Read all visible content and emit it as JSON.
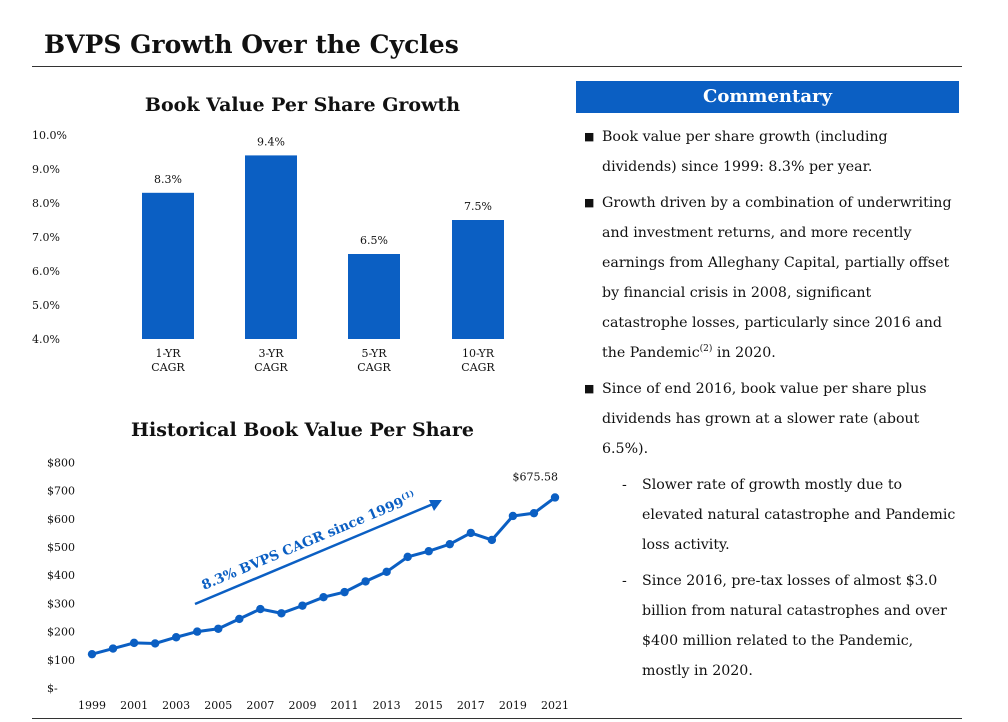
{
  "page": {
    "title": "BVPS Growth Over the Cycles"
  },
  "chart_data": [
    {
      "type": "bar",
      "title": "Book Value Per Share Growth",
      "categories": [
        "1-YR CAGR",
        "3-YR CAGR",
        "5-YR CAGR",
        "10-YR CAGR"
      ],
      "category_lines": [
        [
          "1-YR",
          "CAGR"
        ],
        [
          "3-YR",
          "CAGR"
        ],
        [
          "5-YR",
          "CAGR"
        ],
        [
          "10-YR",
          "CAGR"
        ]
      ],
      "values": [
        8.3,
        9.4,
        6.5,
        7.5
      ],
      "data_labels": [
        "8.3%",
        "9.4%",
        "6.5%",
        "7.5%"
      ],
      "ylim": [
        4.0,
        10.0
      ],
      "yticks": [
        "4.0%",
        "5.0%",
        "6.0%",
        "7.0%",
        "8.0%",
        "9.0%",
        "10.0%"
      ],
      "color": "#0b5fc3",
      "grid": false
    },
    {
      "type": "line",
      "title": "Historical Book Value Per Share",
      "x": [
        1999,
        2000,
        2001,
        2002,
        2003,
        2004,
        2005,
        2006,
        2007,
        2008,
        2009,
        2010,
        2011,
        2012,
        2013,
        2014,
        2015,
        2016,
        2017,
        2018,
        2019,
        2020,
        2021
      ],
      "values": [
        120,
        140,
        160,
        158,
        180,
        200,
        210,
        245,
        280,
        265,
        292,
        322,
        340,
        378,
        412,
        465,
        485,
        510,
        550,
        525,
        610,
        620,
        675.58
      ],
      "xticks": [
        "1999",
        "2001",
        "2003",
        "2005",
        "2007",
        "2009",
        "2011",
        "2013",
        "2015",
        "2017",
        "2019",
        "2021"
      ],
      "yticks": [
        "$-",
        "$100",
        "$200",
        "$300",
        "$400",
        "$500",
        "$600",
        "$700",
        "$800"
      ],
      "ylim": [
        0,
        800
      ],
      "end_label": "$675.58",
      "annotation": {
        "text": "8.3% BVPS CAGR since 1999",
        "sup": "(1)"
      },
      "color": "#0b5fc3",
      "grid": false
    }
  ],
  "commentary": {
    "header": "Commentary",
    "bullet1": "Book value per share growth (including dividends) since 1999: 8.3% per year.",
    "bullet2_text": "Growth driven by a combination of underwriting and investment returns, and more recently earnings from Alleghany Capital, partially offset by financial crisis in 2008, significant catastrophe losses, particularly since 2016 and the Pandemic",
    "bullet2_sup": "(2)",
    "bullet2_tail": " in 2020.",
    "bullet3": "Since of end 2016, book value per share plus dividends has grown at a slower rate (about 6.5%).",
    "sub1": "Slower rate of growth mostly due to elevated natural catastrophe and Pandemic loss activity.",
    "sub2": "Since 2016, pre-tax losses of almost $3.0 billion from natural catastrophes and over $400 million related to the Pandemic, mostly in 2020."
  }
}
